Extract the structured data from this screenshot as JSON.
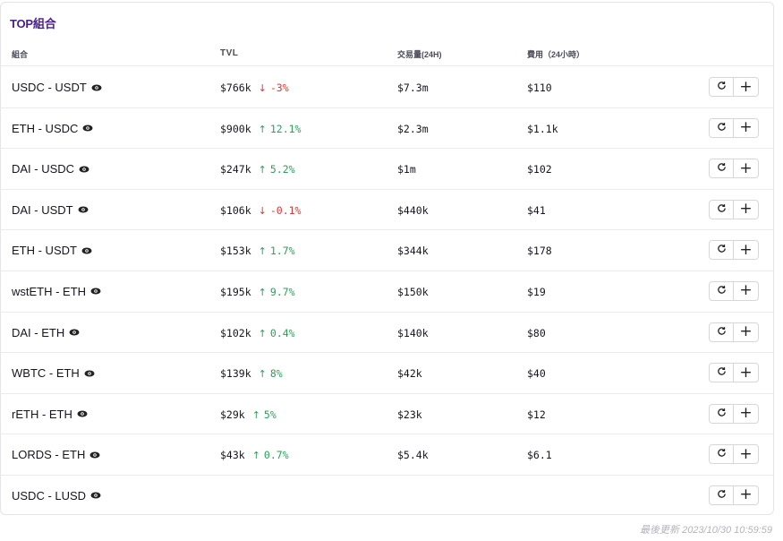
{
  "card": {
    "title": "TOP組合"
  },
  "header": {
    "pair": "組合",
    "tvl": "TVL",
    "volume": "交易量(24H)",
    "fees": "費用（24小時）"
  },
  "rows": [
    {
      "pair": "USDC - USDT",
      "tvl": "$766k",
      "change": "-3%",
      "direction": "down",
      "volume": "$7.3m",
      "fees": "$110"
    },
    {
      "pair": "ETH - USDC",
      "tvl": "$900k",
      "change": "12.1%",
      "direction": "up",
      "volume": "$2.3m",
      "fees": "$1.1k"
    },
    {
      "pair": "DAI - USDC",
      "tvl": "$247k",
      "change": "5.2%",
      "direction": "up",
      "volume": "$1m",
      "fees": "$102"
    },
    {
      "pair": "DAI - USDT",
      "tvl": "$106k",
      "change": "-0.1%",
      "direction": "down",
      "volume": "$440k",
      "fees": "$41"
    },
    {
      "pair": "ETH - USDT",
      "tvl": "$153k",
      "change": "1.7%",
      "direction": "up",
      "volume": "$344k",
      "fees": "$178"
    },
    {
      "pair": "wstETH - ETH",
      "tvl": "$195k",
      "change": "9.7%",
      "direction": "up",
      "volume": "$150k",
      "fees": "$19"
    },
    {
      "pair": "DAI - ETH",
      "tvl": "$102k",
      "change": "0.4%",
      "direction": "up",
      "volume": "$140k",
      "fees": "$80"
    },
    {
      "pair": "WBTC - ETH",
      "tvl": "$139k",
      "change": "8%",
      "direction": "up",
      "volume": "$42k",
      "fees": "$40"
    },
    {
      "pair": "rETH - ETH",
      "tvl": "$29k",
      "change": "5%",
      "direction": "up",
      "volume": "$23k",
      "fees": "$12"
    },
    {
      "pair": "LORDS - ETH",
      "tvl": "$43k",
      "change": "0.7%",
      "direction": "up",
      "volume": "$5.4k",
      "fees": "$6.1"
    },
    {
      "pair": "USDC - LUSD",
      "tvl": "",
      "change": "",
      "direction": "",
      "volume": "",
      "fees": ""
    }
  ],
  "icons": {
    "view": "eye-icon",
    "swap": "refresh-icon",
    "add": "plus-icon",
    "up": "arrow-up-icon",
    "down": "arrow-down-icon"
  },
  "colors": {
    "title": "#4a1f8c",
    "up": "#2f9e5b",
    "down": "#d13b3b"
  },
  "footer": {
    "last_updated": "最後更新 2023/10/30 10:59:59"
  }
}
